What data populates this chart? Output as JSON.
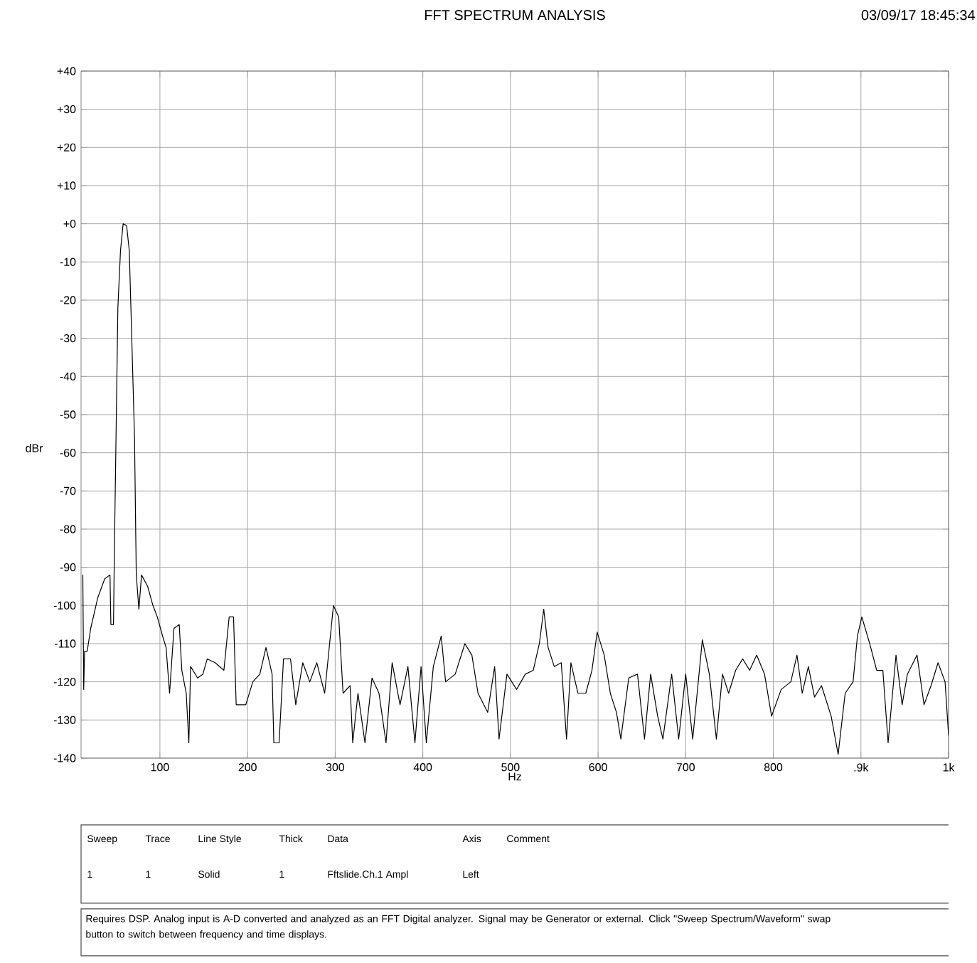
{
  "chart_data": {
    "type": "line",
    "title": "FFT SPECTRUM ANALYSIS",
    "xlabel": "Hz",
    "ylabel": "dBr",
    "annotations": [
      "03/09/17 18:45:34",
      "Sweep",
      "Trace",
      "Line Style",
      "Thick",
      "Data",
      "Axis",
      "Comment",
      "1",
      "1",
      "Solid",
      "1",
      "Fftslide.Ch.1 Ampl",
      "Left",
      "Requires DSP.  Analog input is A-D converted and analyzed as an FFT Digital analyzer.  Signal may be Generator or external.  Click \"Sweep Spectrum/Waveform\" swap button to switch between frequency and time displays."
    ],
    "series": [
      {
        "color": "#000000",
        "x": [
          12,
          13,
          14,
          17,
          21,
          29,
          37,
          43,
          44,
          47,
          48,
          50,
          52,
          55,
          58,
          62,
          65,
          67,
          71,
          73,
          76,
          79,
          86,
          92,
          97,
          103,
          107,
          111,
          116,
          122,
          125,
          130,
          133,
          135,
          143,
          149,
          154,
          163,
          173,
          179,
          184,
          187,
          198,
          206,
          214,
          221,
          228,
          230,
          236,
          241,
          249,
          255,
          263,
          271,
          279,
          288,
          298,
          304,
          309,
          317,
          320,
          326,
          334,
          342,
          350,
          358,
          365,
          374,
          383,
          391,
          398,
          404,
          412,
          421,
          426,
          437,
          448,
          456,
          463,
          474,
          482,
          487,
          496,
          507,
          517,
          526,
          533,
          538,
          543,
          550,
          558,
          564,
          569,
          577,
          586,
          593,
          599,
          607,
          614,
          621,
          626,
          635,
          645,
          653,
          660,
          668,
          674,
          684,
          692,
          700,
          708,
          719,
          727,
          735,
          742,
          749,
          757,
          765,
          773,
          781,
          790,
          798,
          809,
          820,
          827,
          833,
          840,
          847,
          855,
          866,
          874,
          882,
          891,
          896,
          901,
          910,
          918,
          925,
          931,
          940,
          947,
          953,
          964,
          972,
          980,
          988,
          996,
          1000
        ],
        "values": [
          -92,
          -122,
          -112,
          -112,
          -106,
          -98,
          -93,
          -92,
          -105,
          -105,
          -86,
          -54,
          -22,
          -7,
          0,
          -0.5,
          -7,
          -23,
          -56,
          -92,
          -101,
          -92,
          -95,
          -100,
          -103,
          -108,
          -111,
          -123,
          -106,
          -105,
          -117,
          -123,
          -136,
          -116,
          -119,
          -118,
          -114,
          -115,
          -117,
          -103,
          -103,
          -126,
          -126,
          -120,
          -118,
          -111,
          -118,
          -136,
          -136,
          -114,
          -114,
          -126,
          -115,
          -120,
          -115,
          -123,
          -100,
          -103,
          -123,
          -121,
          -136,
          -123,
          -136,
          -119,
          -123,
          -136,
          -115,
          -126,
          -116,
          -136,
          -116,
          -136,
          -116,
          -108,
          -120,
          -118,
          -110,
          -113,
          -123,
          -128,
          -116,
          -135,
          -118,
          -122,
          -118,
          -117,
          -110,
          -101,
          -111,
          -116,
          -115,
          -135,
          -115,
          -123,
          -123,
          -117,
          -107,
          -113,
          -123,
          -128,
          -135,
          -119,
          -118,
          -135,
          -118,
          -129,
          -135,
          -118,
          -135,
          -118,
          -135,
          -109,
          -118,
          -135,
          -118,
          -123,
          -117,
          -114,
          -117,
          -113,
          -118,
          -129,
          -122,
          -120,
          -113,
          -123,
          -116,
          -124,
          -121,
          -129,
          -139,
          -123,
          -120,
          -108,
          -103,
          -110,
          -117,
          -117,
          -136,
          -113,
          -126,
          -118,
          -113,
          -126,
          -121,
          -115,
          -120,
          -134
        ]
      }
    ],
    "xlim": [
      10,
      1000
    ],
    "ylim": [
      -140,
      40
    ],
    "xticks": [
      100,
      200,
      300,
      400,
      500,
      600,
      700,
      800,
      {
        "value": 900,
        "label": ".9k"
      },
      {
        "value": 1000,
        "label": "1k"
      }
    ],
    "yticks": [
      {
        "value": 40,
        "label": "+40"
      },
      {
        "value": 30,
        "label": "+30"
      },
      {
        "value": 20,
        "label": "+20"
      },
      {
        "value": 10,
        "label": "+10"
      },
      {
        "value": 0,
        "label": "+0"
      },
      -10,
      -20,
      -30,
      -40,
      -50,
      -60,
      -70,
      -80,
      -90,
      -100,
      -110,
      -120,
      -130,
      -140
    ],
    "grid": true,
    "line_style": "solid"
  }
}
